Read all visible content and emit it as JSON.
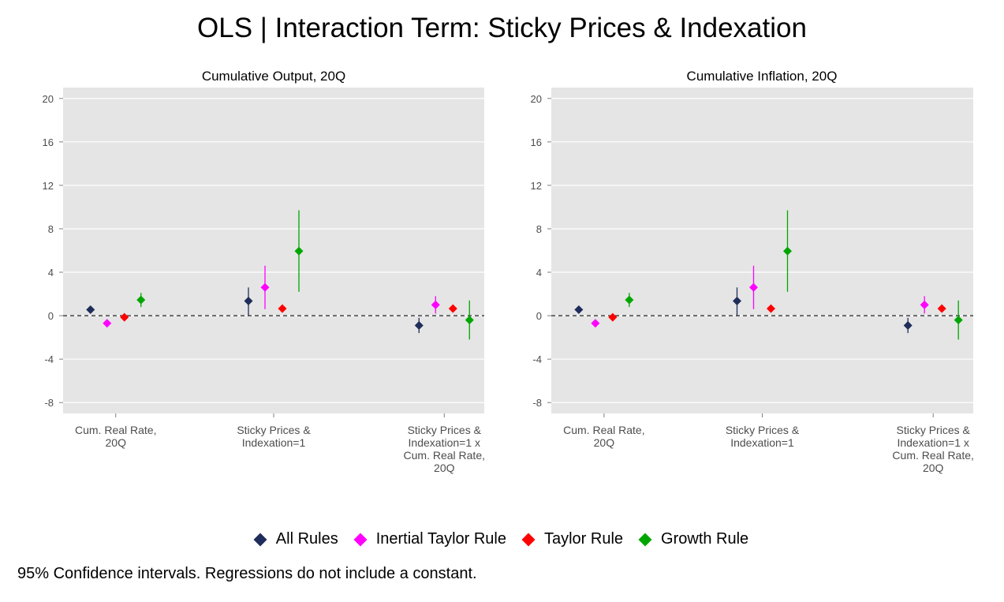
{
  "title": "OLS | Interaction Term: Sticky Prices & Indexation",
  "note": "95% Confidence intervals. Regressions do not include a constant.",
  "legend": [
    {
      "label": "All Rules",
      "color": "#1f2d5a"
    },
    {
      "label": "Inertial Taylor Rule",
      "color": "#ff00ff"
    },
    {
      "label": "Taylor Rule",
      "color": "#ff0000"
    },
    {
      "label": "Growth Rule",
      "color": "#00a600"
    }
  ],
  "chart_data": [
    {
      "type": "scatter",
      "title": "Cumulative Output, 20Q",
      "categories": [
        [
          "Cum. Real Rate,",
          "20Q"
        ],
        [
          "Sticky Prices &",
          "Indexation=1"
        ],
        [
          "Sticky Prices &",
          "Indexation=1 x",
          "Cum. Real Rate,",
          "20Q"
        ]
      ],
      "ylim": [
        -9,
        21
      ],
      "yticks": [
        -8,
        -4,
        0,
        4,
        8,
        12,
        16,
        20
      ],
      "reference_line": 0,
      "grid": true,
      "series": [
        {
          "name": "All Rules",
          "color": "#1f2d5a",
          "estimate": [
            0.55,
            1.35,
            -0.9
          ],
          "ci_low": [
            0.3,
            0.05,
            -1.6
          ],
          "ci_high": [
            0.8,
            2.6,
            -0.2
          ]
        },
        {
          "name": "Inertial Taylor Rule",
          "color": "#ff00ff",
          "estimate": [
            -0.7,
            2.6,
            1.0
          ],
          "ci_low": [
            -0.95,
            0.6,
            0.2
          ],
          "ci_high": [
            -0.45,
            4.6,
            1.8
          ]
        },
        {
          "name": "Taylor Rule",
          "color": "#ff0000",
          "estimate": [
            -0.15,
            0.65,
            0.65
          ],
          "ci_low": [
            -0.35,
            0.45,
            0.45
          ],
          "ci_high": [
            0.05,
            0.85,
            0.85
          ]
        },
        {
          "name": "Growth Rule",
          "color": "#00a600",
          "estimate": [
            1.45,
            5.95,
            -0.4
          ],
          "ci_low": [
            0.8,
            2.2,
            -2.2
          ],
          "ci_high": [
            2.1,
            9.7,
            1.4
          ]
        }
      ]
    },
    {
      "type": "scatter",
      "title": "Cumulative Inflation, 20Q",
      "categories": [
        [
          "Cum. Real Rate,",
          "20Q"
        ],
        [
          "Sticky Prices &",
          "Indexation=1"
        ],
        [
          "Sticky Prices &",
          "Indexation=1 x",
          "Cum. Real Rate,",
          "20Q"
        ]
      ],
      "ylim": [
        -9,
        21
      ],
      "yticks": [
        -8,
        -4,
        0,
        4,
        8,
        12,
        16,
        20
      ],
      "reference_line": 0,
      "grid": true,
      "series": [
        {
          "name": "All Rules",
          "color": "#1f2d5a",
          "estimate": [
            0.55,
            1.35,
            -0.9
          ],
          "ci_low": [
            0.3,
            0.05,
            -1.6
          ],
          "ci_high": [
            0.8,
            2.6,
            -0.2
          ]
        },
        {
          "name": "Inertial Taylor Rule",
          "color": "#ff00ff",
          "estimate": [
            -0.7,
            2.6,
            1.0
          ],
          "ci_low": [
            -0.95,
            0.6,
            0.2
          ],
          "ci_high": [
            -0.45,
            4.6,
            1.8
          ]
        },
        {
          "name": "Taylor Rule",
          "color": "#ff0000",
          "estimate": [
            -0.15,
            0.65,
            0.65
          ],
          "ci_low": [
            -0.35,
            0.45,
            0.45
          ],
          "ci_high": [
            0.05,
            0.85,
            0.85
          ]
        },
        {
          "name": "Growth Rule",
          "color": "#00a600",
          "estimate": [
            1.45,
            5.95,
            -0.4
          ],
          "ci_low": [
            0.8,
            2.2,
            -2.2
          ],
          "ci_high": [
            2.1,
            9.7,
            1.4
          ]
        }
      ]
    }
  ]
}
